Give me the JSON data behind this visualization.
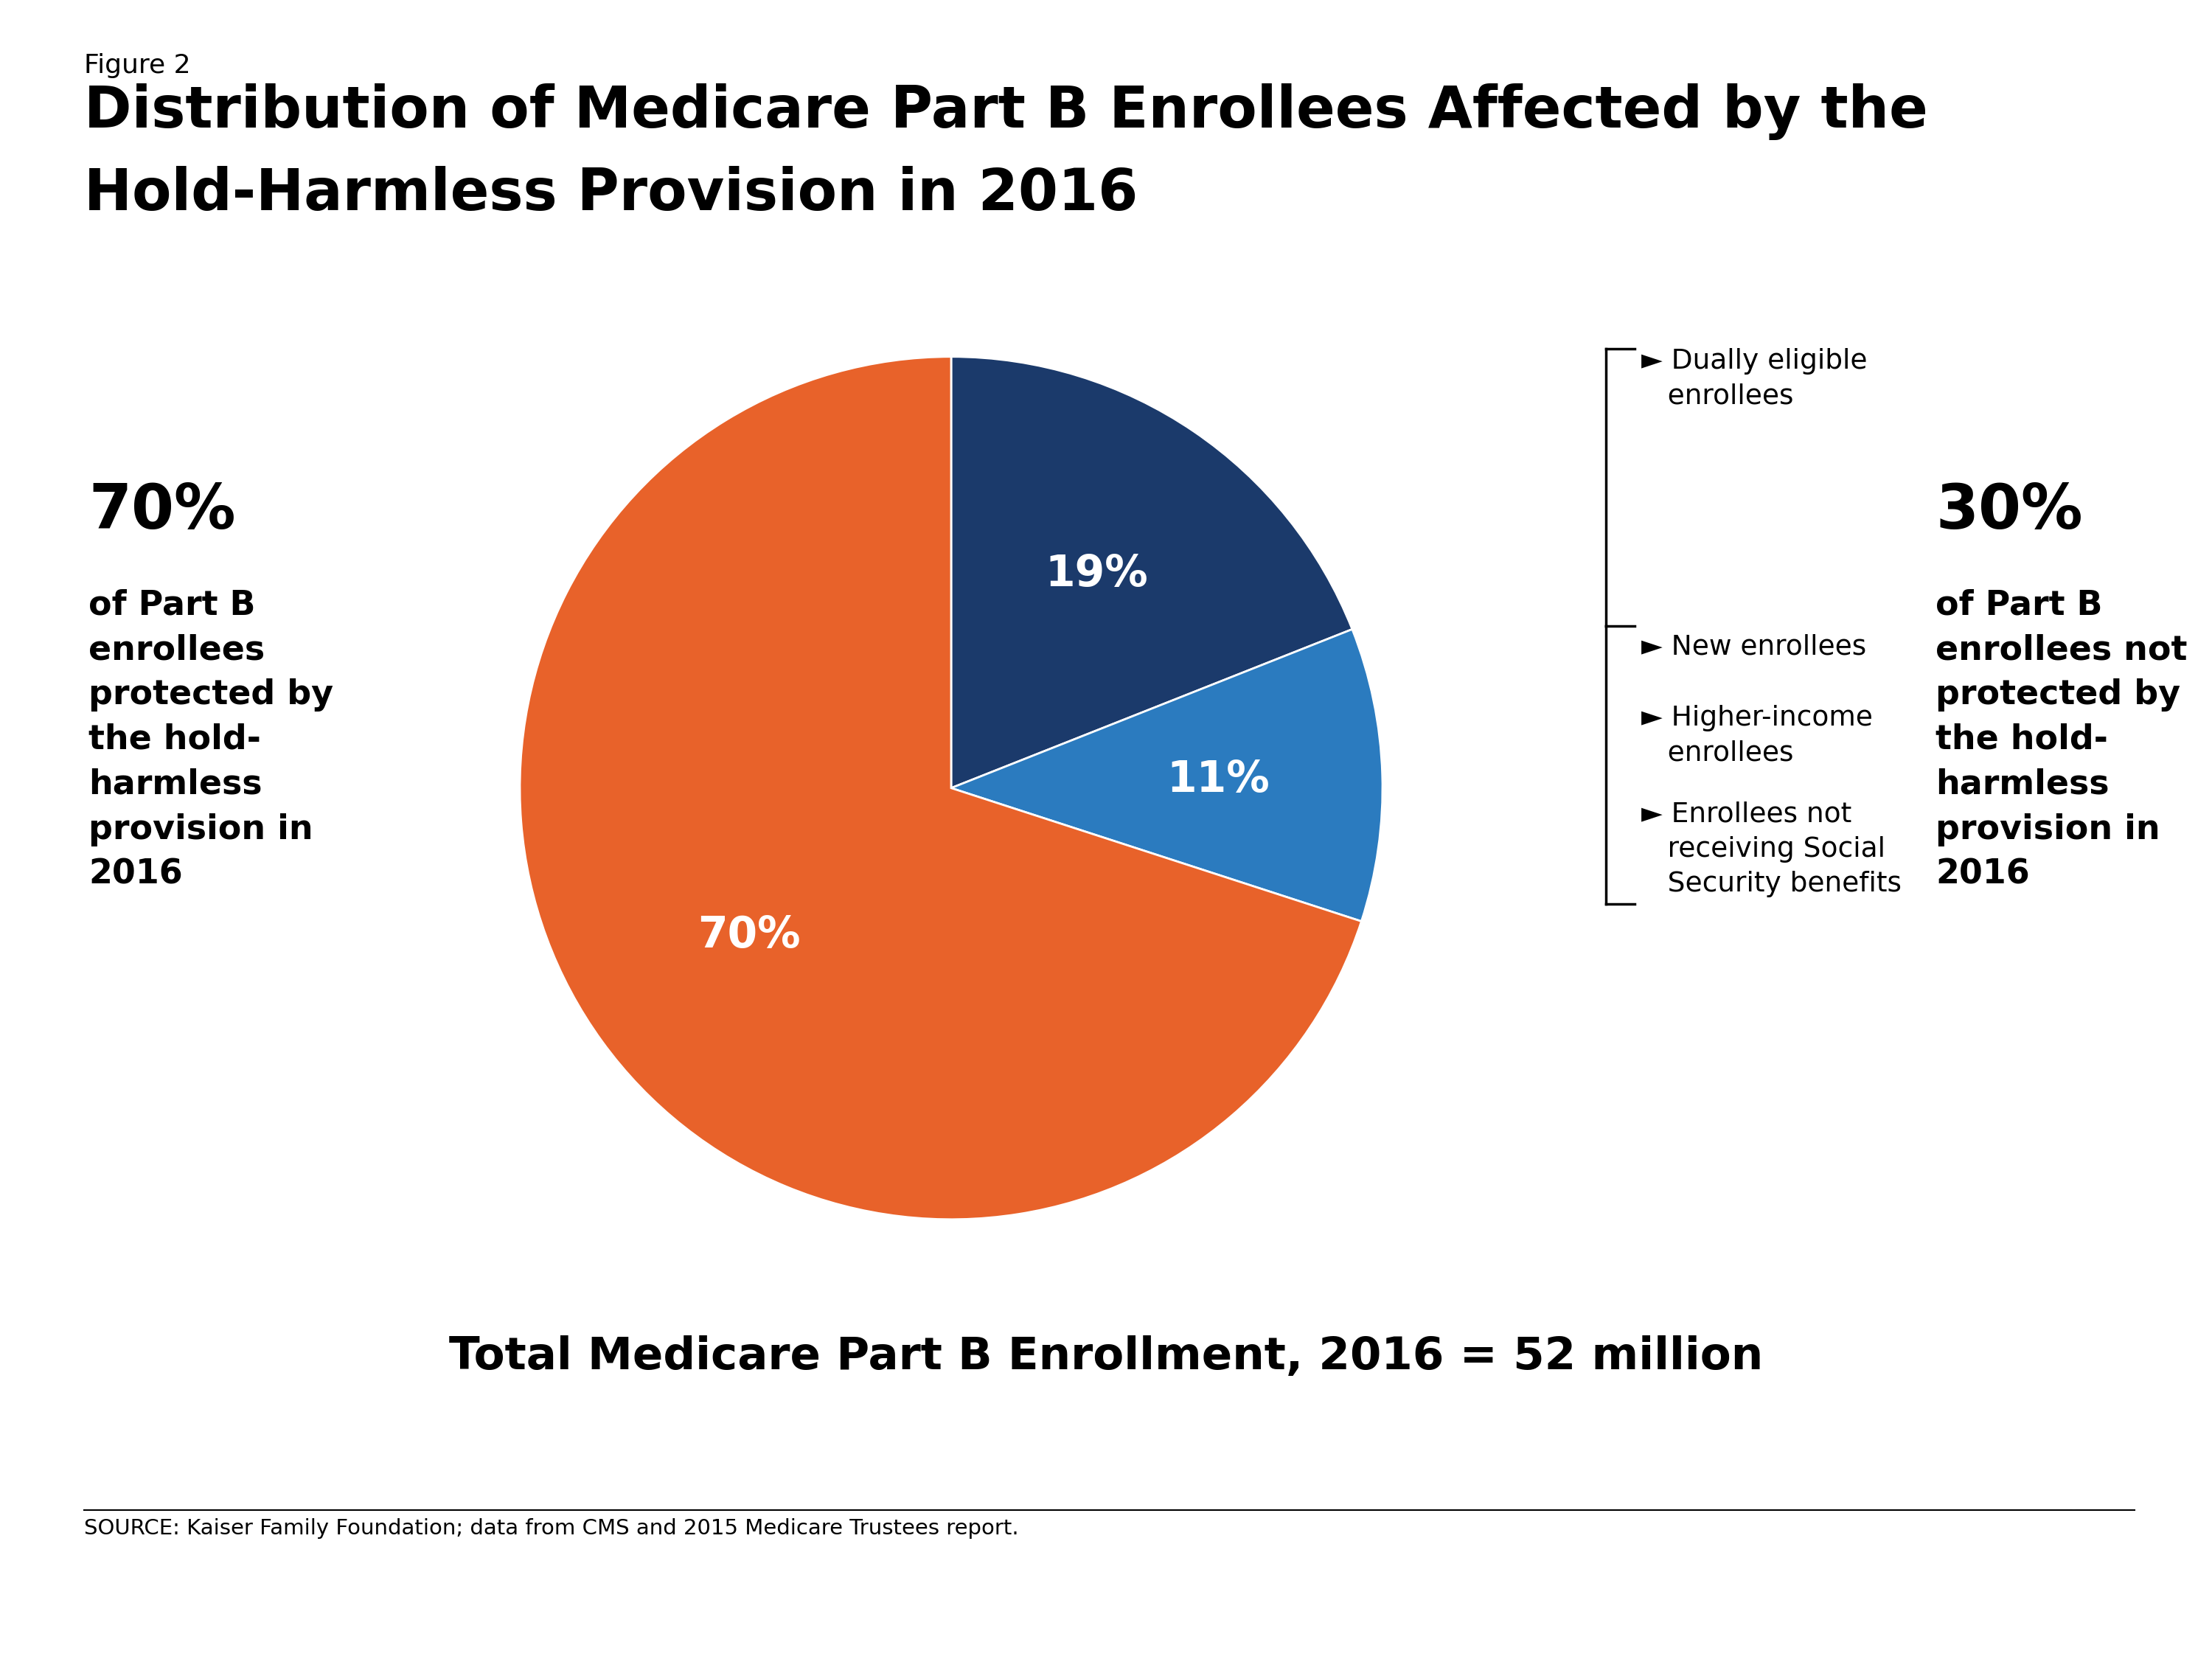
{
  "figure_label": "Figure 2",
  "title_line1": "Distribution of Medicare Part B Enrollees Affected by the",
  "title_line2": "Hold-Harmless Provision in 2016",
  "pie_values": [
    19,
    11,
    70
  ],
  "pie_colors": [
    "#1B3A6B",
    "#2B7BBF",
    "#E8622A"
  ],
  "pie_labels_inside": [
    "19%",
    "11%",
    "70%"
  ],
  "left_annotation_pct": "70%",
  "left_annotation_body": "of Part B\nenrollees\nprotected by\nthe hold-\nharmless\nprovision in\n2016",
  "right_annotation_pct": "30%",
  "right_annotation_body": "of Part B\nenrollees not\nprotected by\nthe hold-\nharmless\nprovision in\n2016",
  "label_dually": "► Dually eligible\n   enrollees",
  "label_new": "► New enrollees",
  "label_higher": "► Higher-income\n   enrollees",
  "label_enrollees": "► Enrollees not\n   receiving Social\n   Security benefits",
  "bottom_text": "Total Medicare Part B Enrollment, 2016 = 52 million",
  "source_text": "SOURCE: Kaiser Family Foundation; data from CMS and 2015 Medicare Trustees report.",
  "bg_color": "#FFFFFF",
  "text_color": "#000000",
  "white": "#FFFFFF",
  "kaiser_blue": "#1B3A6B"
}
